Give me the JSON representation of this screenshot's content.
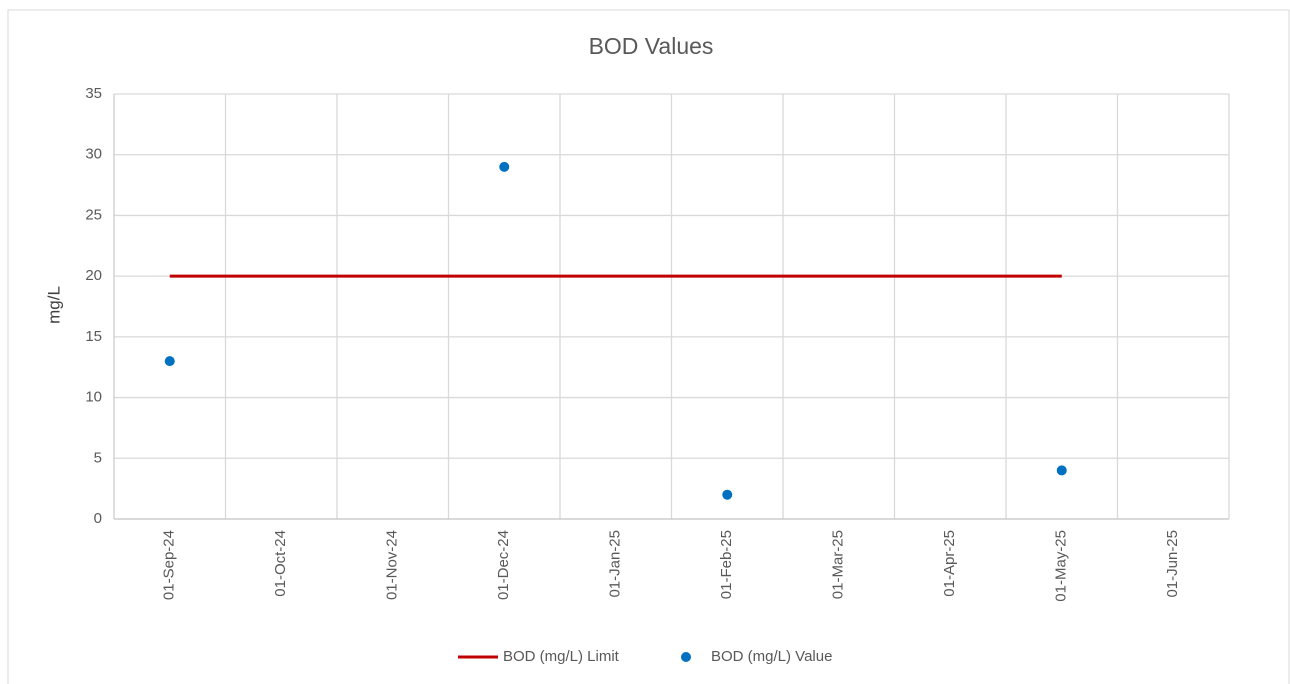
{
  "chart_data": {
    "type": "line",
    "title": "BOD Values",
    "y_label": "mg/L",
    "categories": [
      "01-Sep-24",
      "01-Oct-24",
      "01-Nov-24",
      "01-Dec-24",
      "01-Jan-25",
      "01-Feb-25",
      "01-Mar-25",
      "01-Apr-25",
      "01-May-25",
      "01-Jun-25"
    ],
    "series": [
      {
        "name": "BOD (mg/L) Limit",
        "type": "line",
        "color": "#c00000",
        "values": [
          20,
          20,
          20,
          20,
          20,
          20,
          20,
          20,
          20,
          null
        ]
      },
      {
        "name": "BOD (mg/L) Value",
        "type": "scatter",
        "color": "#0070c0",
        "values": [
          13,
          null,
          null,
          29,
          null,
          2,
          null,
          null,
          4,
          null
        ]
      }
    ],
    "ylim": [
      0,
      35
    ],
    "yticks": [
      0,
      5,
      10,
      15,
      20,
      25,
      30,
      35
    ],
    "grid": true,
    "legend": "bottom"
  }
}
